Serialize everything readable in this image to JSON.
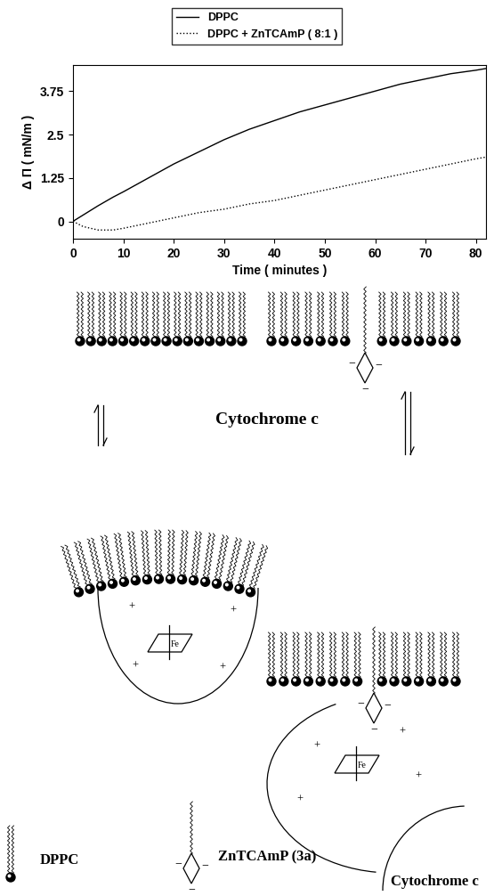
{
  "chart_data": {
    "type": "line",
    "x": [
      0,
      2,
      5,
      8,
      10,
      15,
      20,
      25,
      30,
      35,
      40,
      45,
      50,
      55,
      60,
      65,
      70,
      75,
      80,
      82
    ],
    "series": [
      {
        "name": "DPPC",
        "color": "#000000",
        "line_style": "solid",
        "values": [
          0,
          0.18,
          0.45,
          0.7,
          0.85,
          1.25,
          1.65,
          2.0,
          2.35,
          2.65,
          2.9,
          3.15,
          3.35,
          3.55,
          3.75,
          3.95,
          4.1,
          4.25,
          4.35,
          4.4
        ]
      },
      {
        "name": "DPPC + ZnTCAmP ( 8:1 )",
        "color": "#000000",
        "line_style": "dotted",
        "values": [
          0,
          -0.15,
          -0.25,
          -0.25,
          -0.2,
          -0.05,
          0.1,
          0.25,
          0.35,
          0.5,
          0.6,
          0.75,
          0.9,
          1.05,
          1.2,
          1.35,
          1.5,
          1.65,
          1.8,
          1.85
        ]
      }
    ],
    "x_label": "Time ( minutes )",
    "y_label": "Δ Π ( mN/m )",
    "xlim": [
      0,
      82
    ],
    "ylim": [
      -0.5,
      4.5
    ],
    "xticks": [
      0,
      10,
      20,
      30,
      40,
      50,
      60,
      70,
      80
    ],
    "yticks": [
      0,
      1.25,
      2.5,
      3.75
    ],
    "legend": "upper center",
    "grid": false
  },
  "diagram": {
    "center_label": "Cytochrome c",
    "heme_label": "Fe",
    "charges": {
      "positive": "+",
      "negative": "−"
    },
    "key": [
      {
        "label": "DPPC"
      },
      {
        "label": "ZnTCAmP (3a)"
      },
      {
        "label": "Cytochrome c"
      }
    ]
  }
}
